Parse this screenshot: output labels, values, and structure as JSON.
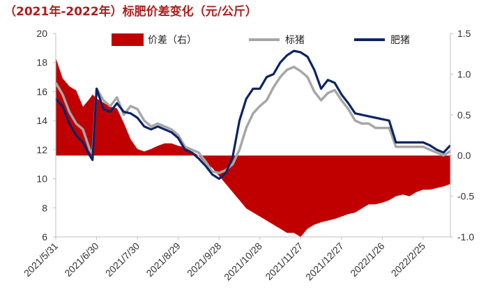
{
  "title": "（2021年-2022年）标肥价差变化（元/公斤）",
  "chart_data": {
    "type": "line",
    "title": "（2021年-2022年）标肥价差变化（元/公斤）",
    "left_axis": {
      "range": [
        6,
        20
      ],
      "ticks": [
        "6",
        "8",
        "10",
        "12",
        "14",
        "16",
        "18",
        "20"
      ]
    },
    "right_axis": {
      "range": [
        -1.0,
        1.5
      ],
      "ticks": [
        "-1.0",
        "-0.5",
        "0.0",
        "0.5",
        "1.0",
        "1.5"
      ]
    },
    "x_tick_labels": [
      "2021/5/31",
      "2021/6/30",
      "2021/7/30",
      "2021/8/29",
      "2021/9/28",
      "2021/10/28",
      "2021/11/27",
      "2021/12/27",
      "2022/1/26",
      "2022/2/25"
    ],
    "legend": {
      "placement": "top",
      "items": [
        "价差（右）",
        "标猪",
        "肥猪"
      ]
    },
    "colors": {
      "spread": "#c00000",
      "standard": "#a6a6a6",
      "fat": "#0b2465"
    },
    "x": [
      "2021/5/31",
      "2021/6/5",
      "2021/6/10",
      "2021/6/15",
      "2021/6/20",
      "2021/6/25",
      "2021/6/27",
      "2021/6/30",
      "2021/7/5",
      "2021/7/10",
      "2021/7/15",
      "2021/7/20",
      "2021/7/25",
      "2021/7/30",
      "2021/8/4",
      "2021/8/9",
      "2021/8/14",
      "2021/8/19",
      "2021/8/24",
      "2021/8/29",
      "2021/9/3",
      "2021/9/8",
      "2021/9/13",
      "2021/9/18",
      "2021/9/23",
      "2021/9/28",
      "2021/10/3",
      "2021/10/8",
      "2021/10/13",
      "2021/10/18",
      "2021/10/23",
      "2021/10/28",
      "2021/11/2",
      "2021/11/7",
      "2021/11/12",
      "2021/11/17",
      "2021/11/22",
      "2021/11/27",
      "2021/12/2",
      "2021/12/7",
      "2021/12/12",
      "2021/12/17",
      "2021/12/22",
      "2021/12/27",
      "2022/1/1",
      "2022/1/6",
      "2022/1/11",
      "2022/1/16",
      "2022/1/21",
      "2022/1/26",
      "2022/1/31",
      "2022/2/5",
      "2022/2/10",
      "2022/2/15",
      "2022/2/20",
      "2022/2/25",
      "2022/3/2",
      "2022/3/7",
      "2022/3/12",
      "2022/3/17"
    ],
    "series": [
      {
        "name": "价差（右）",
        "axis": "right",
        "style": "area",
        "values": [
          1.2,
          0.95,
          0.85,
          0.8,
          0.6,
          0.7,
          0.75,
          0.7,
          0.65,
          0.6,
          0.58,
          0.4,
          0.2,
          0.08,
          0.05,
          0.08,
          0.12,
          0.15,
          0.15,
          0.12,
          0.1,
          0.05,
          0.0,
          -0.1,
          -0.15,
          -0.25,
          -0.35,
          -0.45,
          -0.55,
          -0.65,
          -0.7,
          -0.75,
          -0.8,
          -0.85,
          -0.9,
          -0.95,
          -0.95,
          -1.0,
          -0.9,
          -0.85,
          -0.82,
          -0.8,
          -0.78,
          -0.75,
          -0.72,
          -0.7,
          -0.65,
          -0.6,
          -0.6,
          -0.58,
          -0.55,
          -0.5,
          -0.48,
          -0.5,
          -0.45,
          -0.42,
          -0.42,
          -0.4,
          -0.38,
          -0.35
        ]
      },
      {
        "name": "标猪",
        "axis": "left",
        "style": "line",
        "values": [
          16.6,
          15.8,
          14.6,
          13.8,
          13.4,
          12.0,
          11.7,
          16.2,
          15.4,
          15.0,
          15.6,
          14.4,
          15.0,
          14.8,
          14.0,
          13.6,
          13.8,
          13.6,
          13.4,
          13.0,
          12.2,
          12.0,
          11.8,
          11.2,
          10.5,
          10.4,
          10.6,
          11.0,
          12.0,
          13.5,
          14.5,
          15.0,
          15.4,
          16.3,
          17.0,
          17.5,
          17.7,
          17.4,
          17.0,
          16.0,
          15.4,
          15.9,
          16.1,
          15.4,
          14.8,
          14.0,
          13.8,
          13.8,
          13.5,
          13.5,
          13.5,
          12.2,
          12.2,
          12.2,
          12.2,
          12.2,
          12.0,
          11.8,
          11.6,
          11.9
        ]
      },
      {
        "name": "肥猪",
        "axis": "left",
        "style": "line",
        "values": [
          15.5,
          15.0,
          13.8,
          13.0,
          12.5,
          11.6,
          11.3,
          16.2,
          14.8,
          14.6,
          15.2,
          14.6,
          14.5,
          14.2,
          13.6,
          13.4,
          13.6,
          13.4,
          13.2,
          12.8,
          12.0,
          11.8,
          11.4,
          10.9,
          10.3,
          10.0,
          10.4,
          11.5,
          14.0,
          15.5,
          16.2,
          16.2,
          17.0,
          17.2,
          18.0,
          18.5,
          18.8,
          18.7,
          18.4,
          17.5,
          16.2,
          16.8,
          16.6,
          15.8,
          15.2,
          14.5,
          14.4,
          14.3,
          14.2,
          14.1,
          14.0,
          12.5,
          12.5,
          12.5,
          12.5,
          12.5,
          12.3,
          12.0,
          11.8,
          12.3
        ]
      }
    ]
  }
}
